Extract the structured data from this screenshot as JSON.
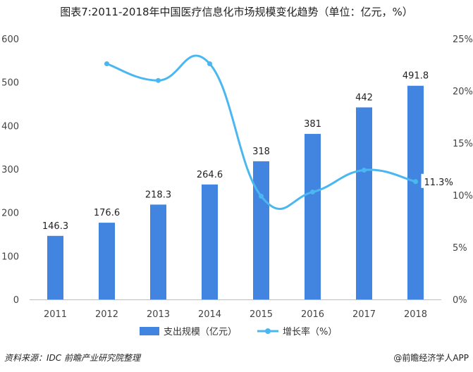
{
  "title": "图表7:2011-2018年中国医疗信息化市场规模变化趋势（单位：亿元，%）",
  "source": "资料来源：IDC 前瞻产业研究院整理",
  "brand": "@前瞻经济学人APP",
  "colors": {
    "bar": "#4285e0",
    "line": "#4bb7f0"
  },
  "chart_data": {
    "type": "bar",
    "categories": [
      "2011",
      "2012",
      "2013",
      "2014",
      "2015",
      "2016",
      "2017",
      "2018"
    ],
    "series": [
      {
        "name": "支出规模（亿元）",
        "type": "bar",
        "axis": "left",
        "values": [
          146.3,
          176.6,
          218.3,
          264.6,
          318,
          381,
          442,
          491.8
        ],
        "labels": [
          "146.3",
          "176.6",
          "218.3",
          "264.6",
          "318",
          "381",
          "442",
          "491.8"
        ]
      },
      {
        "name": "增长率（%）",
        "type": "line",
        "axis": "right",
        "values": [
          null,
          22.6,
          21.0,
          22.6,
          9.9,
          10.3,
          12.4,
          11.3
        ],
        "labels": [
          null,
          null,
          null,
          null,
          null,
          null,
          null,
          "11.3%"
        ]
      }
    ],
    "ylim_left": [
      0,
      600
    ],
    "yticks_left": [
      "0",
      "100",
      "200",
      "300",
      "400",
      "500",
      "600"
    ],
    "ylim_right": [
      0,
      25
    ],
    "yticks_right": [
      "0%",
      "5%",
      "10%",
      "15%",
      "20%",
      "25%"
    ],
    "legend": "bottom",
    "grid": false
  }
}
